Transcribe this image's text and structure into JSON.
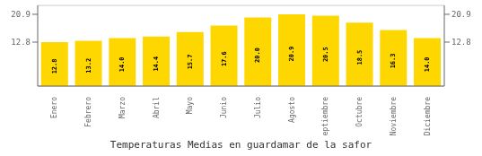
{
  "chart_data": {
    "type": "bar",
    "title": "Temperaturas Medias en guardamar de la safor",
    "categories": [
      "Enero",
      "Febrero",
      "Marzo",
      "Abril",
      "Mayo",
      "Junio",
      "Julio",
      "Agosto",
      "Septiembre",
      "Octubre",
      "Noviembre",
      "Diciembre"
    ],
    "values": [
      12.8,
      13.2,
      14.0,
      14.4,
      15.7,
      17.6,
      20.0,
      20.9,
      20.5,
      18.5,
      16.3,
      14.0
    ],
    "value_labels": [
      "12.8",
      "13.2",
      "14.0",
      "14.4",
      "15.7",
      "17.6",
      "20.0",
      "20.9",
      "20.5",
      "18.5",
      "16.3",
      "14.0"
    ],
    "color": "#FFD700",
    "ylim": [
      0.0,
      23.5
    ],
    "yticks": [
      12.8,
      20.9
    ],
    "grid": true,
    "data_labels": true
  }
}
